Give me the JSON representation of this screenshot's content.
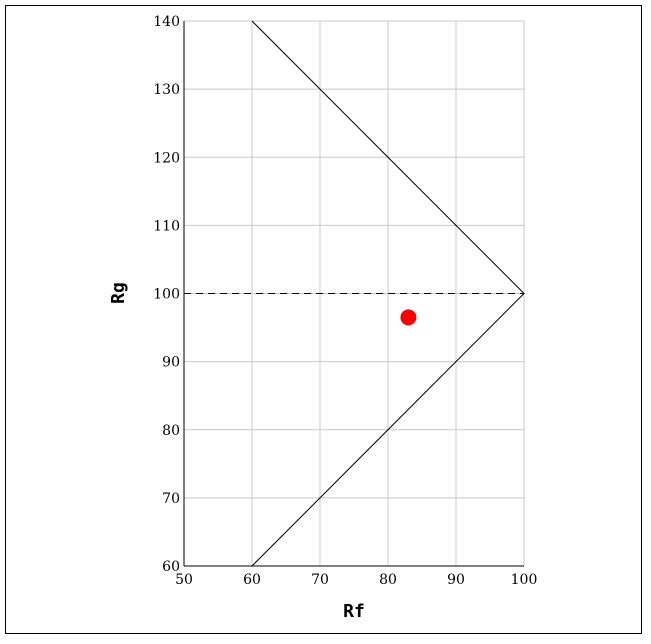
{
  "chart_data": {
    "type": "scatter",
    "title": "",
    "xlabel": "Rf",
    "ylabel": "Rg",
    "xlim": [
      50,
      100
    ],
    "ylim": [
      60,
      140
    ],
    "xticks": [
      "50",
      "60",
      "70",
      "80",
      "90",
      "100"
    ],
    "yticks": [
      "60",
      "70",
      "80",
      "90",
      "100",
      "110",
      "120",
      "130",
      "140"
    ],
    "grid": true,
    "boundary": {
      "style": "solid",
      "color": "#000000",
      "points": [
        [
          60,
          140
        ],
        [
          100,
          100
        ],
        [
          60,
          60
        ]
      ]
    },
    "reference_line": {
      "style": "dashed",
      "color": "#000000",
      "y": 100,
      "x_range": [
        50,
        100
      ]
    },
    "points": [
      {
        "x": 83,
        "y": 96.5,
        "color": "#ff0000"
      }
    ]
  }
}
